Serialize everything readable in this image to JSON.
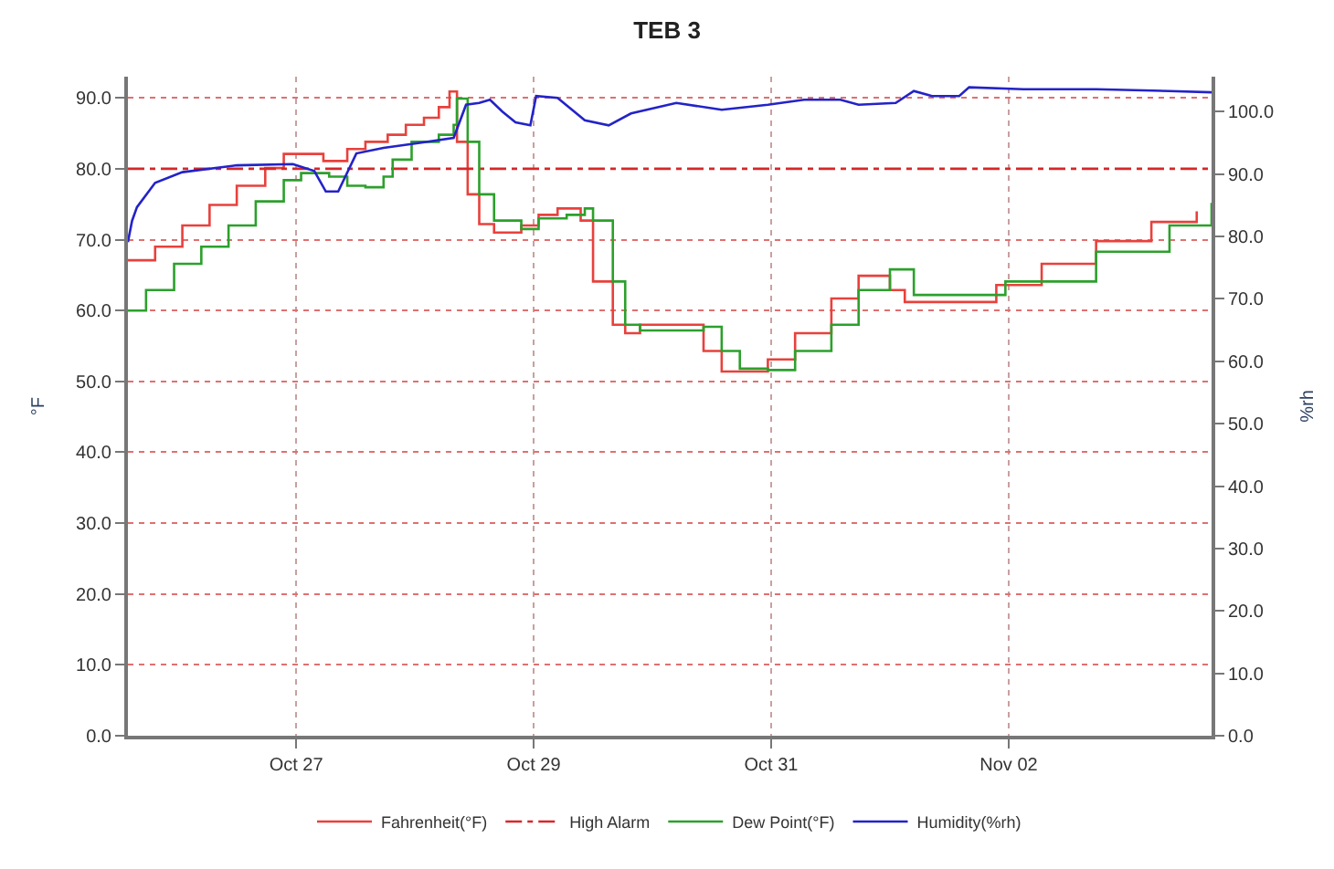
{
  "chart_data": {
    "type": "line",
    "title": "TEB 3",
    "ylabel": "°F",
    "y2label": "%rh",
    "xlim": [
      "--10-25T14:00",
      "--11-03T17:00"
    ],
    "xticks": [
      {
        "value": "--10-27",
        "label": "Oct 27"
      },
      {
        "value": "--10-29",
        "label": "Oct 29"
      },
      {
        "value": "--10-31",
        "label": "Oct 31"
      },
      {
        "value": "--11-02",
        "label": "Nov 02"
      }
    ],
    "ylim": [
      0,
      93
    ],
    "yticks": [
      {
        "value": 0,
        "label": "0.0"
      },
      {
        "value": 10,
        "label": "10.0"
      },
      {
        "value": 20,
        "label": "20.0"
      },
      {
        "value": 30,
        "label": "30.0"
      },
      {
        "value": 40,
        "label": "40.0"
      },
      {
        "value": 50,
        "label": "50.0"
      },
      {
        "value": 60,
        "label": "60.0"
      },
      {
        "value": 70,
        "label": "70.0"
      },
      {
        "value": 80,
        "label": "80.0"
      },
      {
        "value": 90,
        "label": "90.0"
      }
    ],
    "y2lim": [
      0,
      105.6
    ],
    "y2ticks": [
      {
        "value": 0,
        "label": "0.0"
      },
      {
        "value": 10,
        "label": "10.0"
      },
      {
        "value": 20,
        "label": "20.0"
      },
      {
        "value": 30,
        "label": "30.0"
      },
      {
        "value": 40,
        "label": "40.0"
      },
      {
        "value": 50,
        "label": "50.0"
      },
      {
        "value": 60,
        "label": "60.0"
      },
      {
        "value": 70,
        "label": "70.0"
      },
      {
        "value": 80,
        "label": "80.0"
      },
      {
        "value": 90,
        "label": "90.0"
      },
      {
        "value": 100,
        "label": "100.0"
      }
    ],
    "grid": true,
    "legend": "bottom",
    "marker": "none",
    "ref_lines": [
      {
        "axis": "y",
        "value": 80,
        "label": "High Alarm",
        "color": "#d62728",
        "line_style": "dashdot"
      }
    ],
    "series": [
      {
        "name": "Fahrenheit(°F)",
        "type": "step",
        "color": "#e8413c",
        "x": [
          "--10-25T14:00",
          "--10-25T19:30",
          "--10-26T01:00",
          "--10-26T06:30",
          "--10-26T12:00",
          "--10-26T17:45",
          "--10-26T21:30",
          "--10-27T05:30",
          "--10-27T10:20",
          "--10-27T14:00",
          "--10-27T18:30",
          "--10-27T22:10",
          "--10-28T01:50",
          "--10-28T04:50",
          "--10-28T07:00",
          "--10-28T08:30",
          "--10-28T10:40",
          "--10-28T13:00",
          "--10-28T16:00",
          "--10-28T21:30",
          "--10-29T01:00",
          "--10-29T04:50",
          "--10-29T09:30",
          "--10-29T12:00",
          "--10-29T16:00",
          "--10-29T18:30",
          "--10-29T21:30",
          "--10-30T10:20",
          "--10-30T14:00",
          "--10-30T17:40",
          "--10-30T23:20",
          "--10-31T04:50",
          "--10-31T12:10",
          "--10-31T17:40",
          "--11-01T00:00",
          "--11-01T03:00",
          "--11-01T04:50",
          "--11-01T21:30",
          "--11-02T06:40",
          "--11-02T17:40",
          "--11-03T04:50",
          "--11-03T14:00"
        ],
        "values": [
          67.1,
          69.0,
          72.0,
          74.9,
          77.6,
          80.1,
          82.1,
          81.1,
          82.8,
          83.8,
          84.8,
          86.2,
          87.2,
          88.7,
          90.9,
          83.8,
          76.4,
          72.2,
          71.0,
          72.0,
          73.5,
          74.4,
          72.7,
          64.1,
          58.0,
          56.8,
          58.0,
          54.3,
          51.4,
          51.4,
          53.1,
          56.8,
          61.7,
          64.9,
          62.9,
          61.2,
          61.2,
          63.6,
          66.6,
          69.8,
          72.5,
          74.0
        ]
      },
      {
        "name": "Dew Point(°F)",
        "type": "step",
        "color": "#2ca02c",
        "x": [
          "--10-25T14:00",
          "--10-25T17:40",
          "--10-25T23:20",
          "--10-26T04:50",
          "--10-26T10:20",
          "--10-26T15:50",
          "--10-26T21:30",
          "--10-27T01:00",
          "--10-27T06:40",
          "--10-27T10:20",
          "--10-27T14:00",
          "--10-27T17:40",
          "--10-27T19:30",
          "--10-27T23:20",
          "--10-28T04:50",
          "--10-28T07:50",
          "--10-28T08:30",
          "--10-28T10:40",
          "--10-28T13:00",
          "--10-28T16:00",
          "--10-28T21:30",
          "--10-29T01:00",
          "--10-29T06:40",
          "--10-29T10:20",
          "--10-29T12:00",
          "--10-29T16:00",
          "--10-29T18:30",
          "--10-29T21:30",
          "--10-30T10:20",
          "--10-30T14:00",
          "--10-30T17:40",
          "--10-30T23:20",
          "--10-31T04:50",
          "--10-31T12:10",
          "--10-31T17:40",
          "--11-01T00:00",
          "--11-01T04:50",
          "--11-01T13:20",
          "--11-01T23:20",
          "--11-02T17:40",
          "--11-03T08:30",
          "--11-03T17:00"
        ],
        "values": [
          60.0,
          62.9,
          66.6,
          69.0,
          72.0,
          75.4,
          78.4,
          79.4,
          78.9,
          77.6,
          77.4,
          78.9,
          81.3,
          83.8,
          84.8,
          86.2,
          89.9,
          83.8,
          76.4,
          72.7,
          71.5,
          73.0,
          73.5,
          74.4,
          72.7,
          64.1,
          58.0,
          57.2,
          57.7,
          54.3,
          51.8,
          51.6,
          54.3,
          58.0,
          62.9,
          65.8,
          62.2,
          62.2,
          64.1,
          68.3,
          72.0,
          75.2
        ]
      },
      {
        "name": "Humidity(%rh)",
        "axis": "y2",
        "color": "#2323c8",
        "x": [
          "--10-25T14:00",
          "--10-25T14:50",
          "--10-25T15:50",
          "--10-25T19:30",
          "--10-26T01:00",
          "--10-26T12:00",
          "--10-26T23:20",
          "--10-27T03:40",
          "--10-27T06:00",
          "--10-27T08:30",
          "--10-27T12:10",
          "--10-27T17:40",
          "--10-28T01:00",
          "--10-28T07:50",
          "--10-28T10:20",
          "--10-28T13:00",
          "--10-28T15:10",
          "--10-28T17:40",
          "--10-28T20:20",
          "--10-28T23:20",
          "--10-29T00:30",
          "--10-29T04:50",
          "--10-29T10:20",
          "--10-29T15:10",
          "--10-29T19:40",
          "--10-30T04:50",
          "--10-30T14:00",
          "--10-30T23:20",
          "--10-31T06:40",
          "--10-31T14:00",
          "--10-31T17:40",
          "--11-01T01:10",
          "--11-01T04:50",
          "--11-01T08:30",
          "--11-01T14:00",
          "--11-01T16:00",
          "--11-02T03:00",
          "--11-02T17:40",
          "--11-03T08:30",
          "--11-03T17:00"
        ],
        "values": [
          79.1,
          82.5,
          84.7,
          88.6,
          90.3,
          91.4,
          91.6,
          90.5,
          87.2,
          87.2,
          93.3,
          94.2,
          95.0,
          95.8,
          101.1,
          101.4,
          101.9,
          100.0,
          98.3,
          97.8,
          102.5,
          102.2,
          98.6,
          97.8,
          99.7,
          101.4,
          100.3,
          101.1,
          101.9,
          101.9,
          101.1,
          101.4,
          103.3,
          102.5,
          102.5,
          103.9,
          103.6,
          103.6,
          103.3,
          103.1
        ]
      }
    ]
  }
}
